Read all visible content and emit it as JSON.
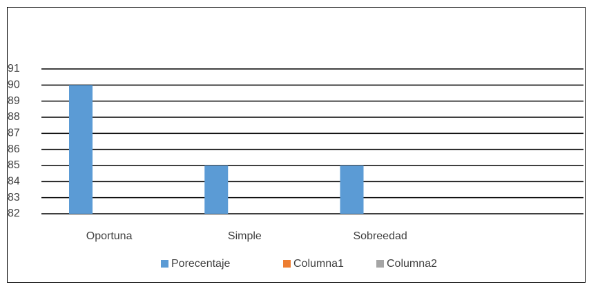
{
  "chart_data": {
    "type": "bar",
    "categories": [
      "Oportuna",
      "Simple",
      "Sobreedad",
      null
    ],
    "series": [
      {
        "name": "Porecentaje",
        "color": "#5b9bd5",
        "values": [
          90,
          85,
          85,
          null
        ]
      },
      {
        "name": "Columna1",
        "color": "#ed7d31",
        "values": [
          null,
          null,
          null,
          null
        ]
      },
      {
        "name": "Columna2",
        "color": "#a5a5a5",
        "values": [
          null,
          null,
          null,
          null
        ]
      }
    ],
    "ylim": [
      82,
      91
    ],
    "yticks": [
      82,
      83,
      84,
      85,
      86,
      87,
      88,
      89,
      90,
      91
    ],
    "grid": true,
    "legend": "bottom"
  }
}
